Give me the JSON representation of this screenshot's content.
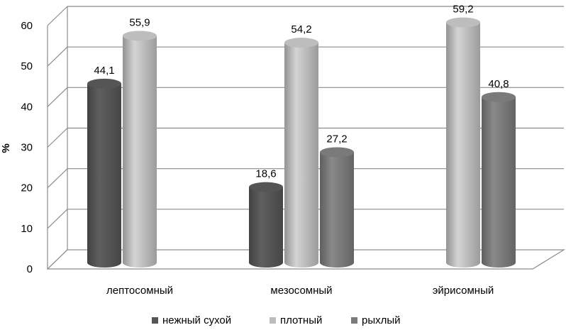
{
  "chart_data": {
    "type": "bar",
    "style": "3d-cylinder",
    "categories": [
      "лептосомный",
      "мезосомный",
      "эйрисомный"
    ],
    "series": [
      {
        "name": "нежный сухой",
        "color": "#555555",
        "values": [
          44.1,
          18.6,
          null
        ]
      },
      {
        "name": "плотный",
        "color": "#bdbdbd",
        "values": [
          55.9,
          54.2,
          59.2
        ]
      },
      {
        "name": "рыхлый",
        "color": "#7a7a7a",
        "values": [
          null,
          27.2,
          40.8
        ]
      }
    ],
    "data_labels": [
      [
        "44,1",
        "18,6",
        ""
      ],
      [
        "55,9",
        "54,2",
        "59,2"
      ],
      [
        "",
        "27,2",
        "40,8"
      ]
    ],
    "ylabel": "%",
    "ylim": [
      0,
      60
    ],
    "yticks": [
      "0",
      "10",
      "20",
      "30",
      "40",
      "50",
      "60"
    ],
    "grid": true,
    "legend_position": "bottom"
  }
}
